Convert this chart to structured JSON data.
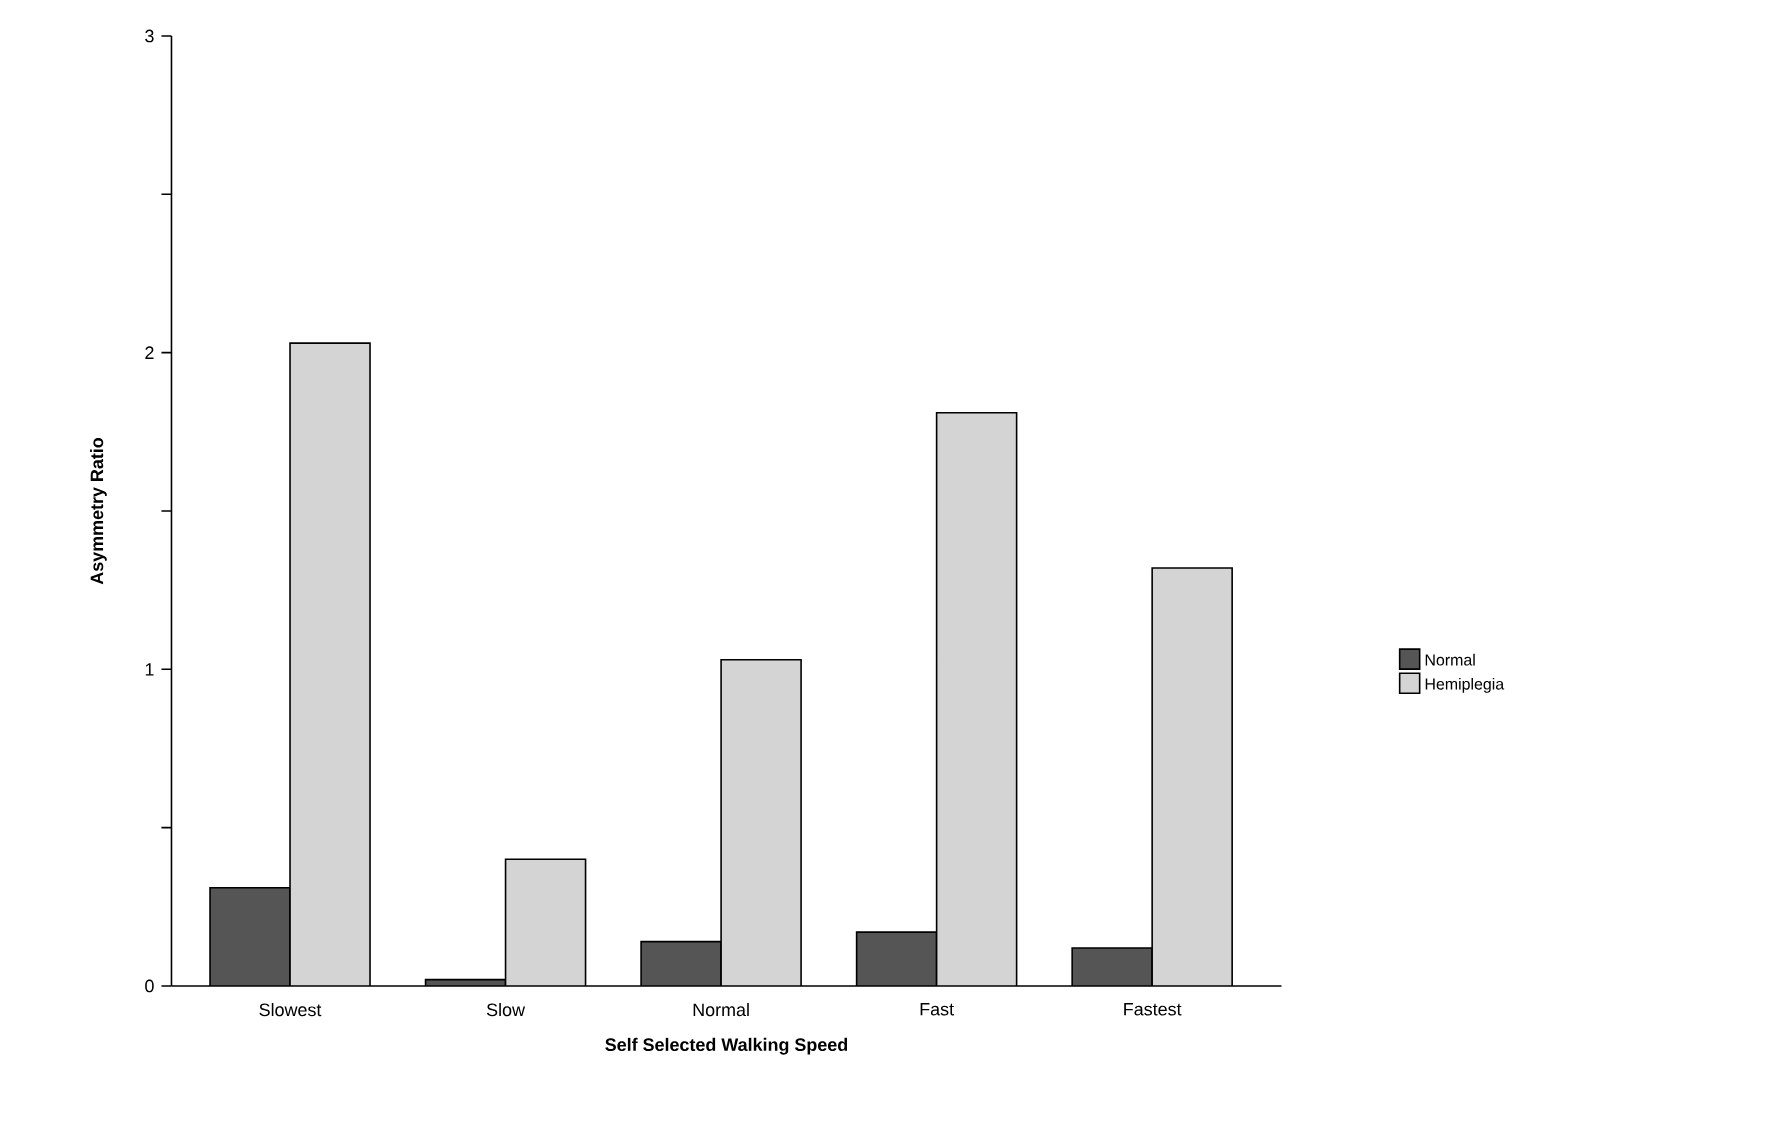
{
  "chart_data": {
    "type": "bar",
    "xlabel": "Self  Selected  Walking  Speed",
    "ylabel": "Asymmetry  Ratio",
    "categories": [
      "Slowest",
      "Slow",
      "Normal",
      "Fast",
      "Fastest"
    ],
    "series": [
      {
        "name": "Normal",
        "color": "#555555",
        "values": [
          0.31,
          0.02,
          0.14,
          0.17,
          0.12
        ]
      },
      {
        "name": "Hemiplegia",
        "color": "#d4d4d4",
        "values": [
          2.03,
          0.4,
          1.03,
          1.81,
          1.32
        ]
      }
    ],
    "ylim": [
      0,
      3
    ],
    "yticks": [
      0,
      {
        "value": 0.5,
        "label": null
      },
      1,
      {
        "value": 1.5,
        "label": null
      },
      2,
      {
        "value": 2.5,
        "label": null
      },
      3
    ],
    "grid": false,
    "legend": "right"
  }
}
